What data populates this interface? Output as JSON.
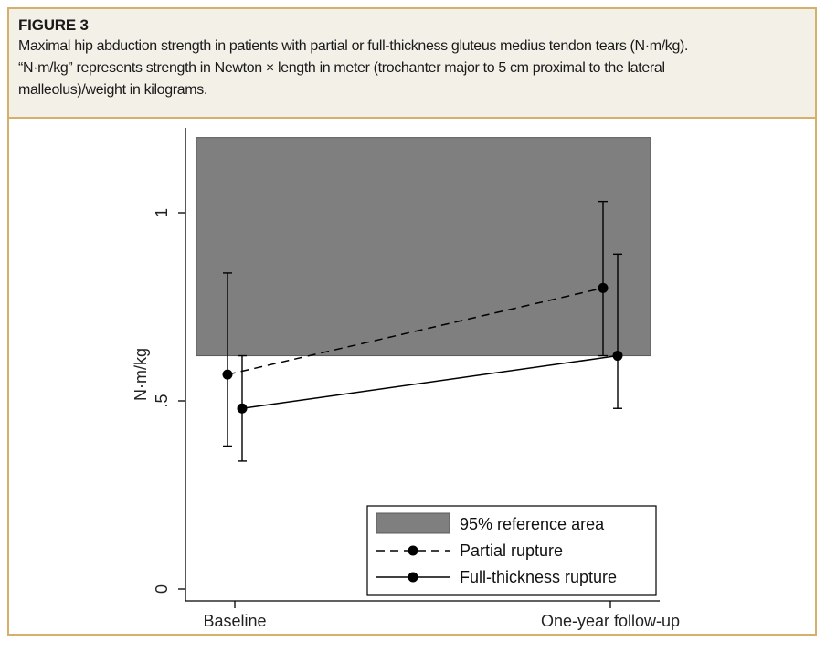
{
  "figure": {
    "label": "FIGURE 3",
    "caption_line1": "Maximal hip abduction strength in patients with partial or full-thickness gluteus medius tendon tears (N·m/kg).",
    "caption_line2": "“N·m/kg” represents strength in Newton × length in meter (trochanter major to 5 cm proximal to the lateral",
    "caption_line3": "malleolus)/weight in kilograms."
  },
  "chart_data": {
    "type": "line",
    "title": "",
    "xlabel": "",
    "ylabel": "N·m/kg",
    "categories": [
      "Baseline",
      "One-year follow-up"
    ],
    "ylim": [
      0,
      1.22
    ],
    "yticks": [
      0,
      0.5,
      1
    ],
    "ytick_labels": [
      "0",
      ".5",
      "1"
    ],
    "reference_area": {
      "name": "95% reference area",
      "ymin": 0.62,
      "ymax": 1.2,
      "color": "#7f7f7f"
    },
    "series": [
      {
        "name": "Partial rupture",
        "style": "dashed",
        "values": [
          0.57,
          0.8
        ],
        "ci_low": [
          0.38,
          0.62
        ],
        "ci_high": [
          0.84,
          1.03
        ]
      },
      {
        "name": "Full-thickness rupture",
        "style": "solid",
        "values": [
          0.48,
          0.62
        ],
        "ci_low": [
          0.34,
          0.48
        ],
        "ci_high": [
          0.62,
          0.89
        ]
      }
    ],
    "legend_position": "bottom-right",
    "grid": false
  }
}
